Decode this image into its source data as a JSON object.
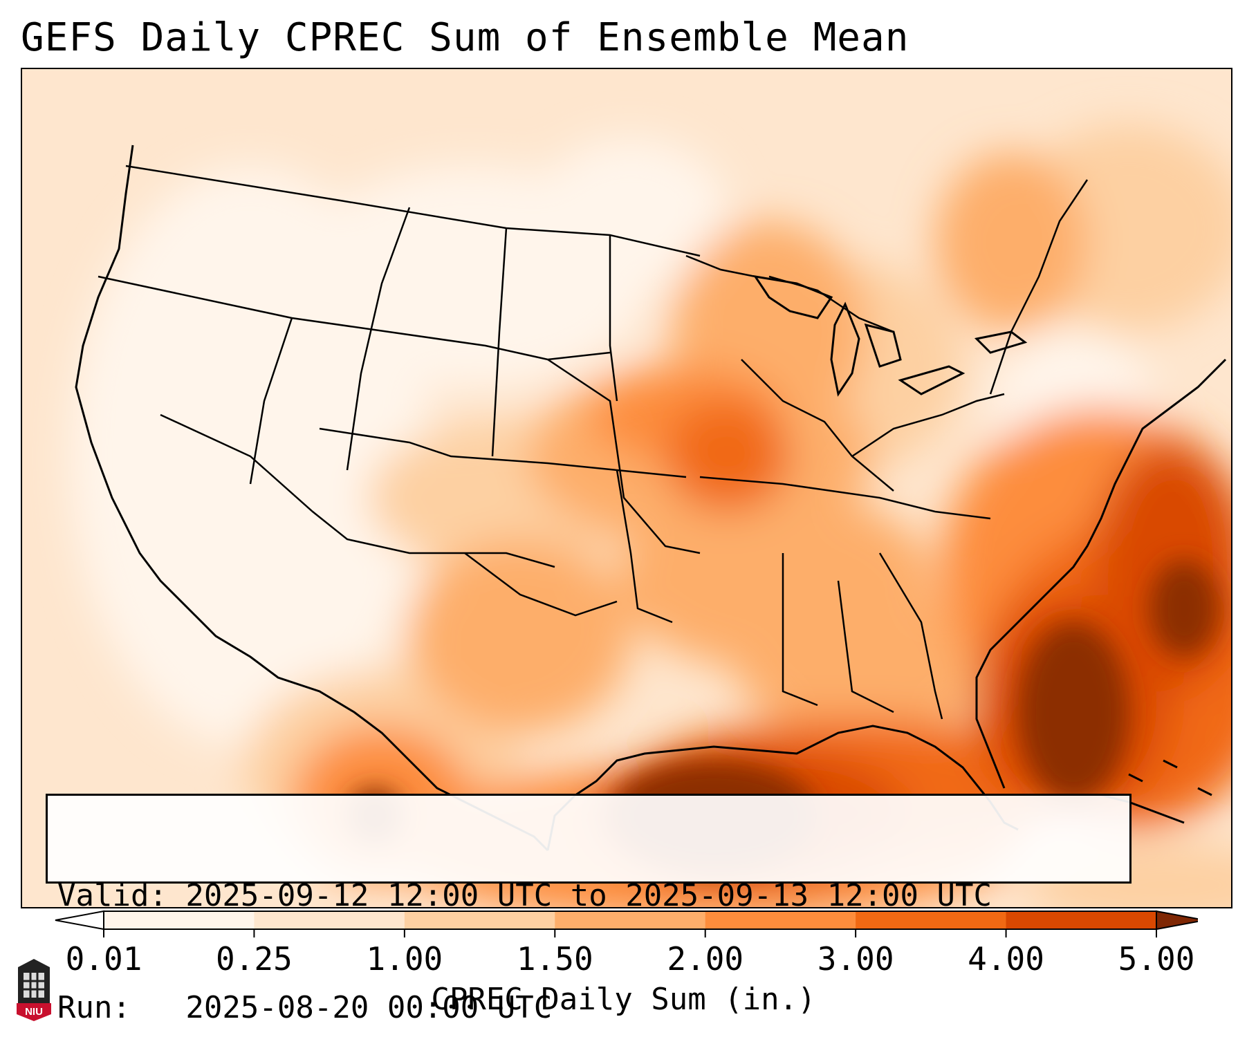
{
  "title": "GEFS Daily CPREC Sum of Ensemble Mean",
  "info": {
    "valid_line": "Valid: 2025-09-12 12:00 UTC to 2025-09-13 12:00 UTC",
    "run_line": "Run:   2025-08-20 00:00 UTC"
  },
  "colorbar": {
    "label": "CPREC Daily Sum (in.)",
    "ticks": [
      "0.01",
      "0.25",
      "1.00",
      "1.50",
      "2.00",
      "3.00",
      "4.00",
      "5.00"
    ],
    "colors": [
      "#fff5eb",
      "#fee6ce",
      "#fdd0a2",
      "#fdae6b",
      "#fd8d3c",
      "#f16913",
      "#d94801",
      "#8c2d04"
    ],
    "under_color": "#ffffff",
    "over_color": "#7f2704"
  },
  "logo": {
    "text": "NIU",
    "colors": {
      "shield": "#c8102e",
      "body": "#222222"
    }
  },
  "chart_data": {
    "type": "heatmap",
    "title": "GEFS Daily CPREC Sum of Ensemble Mean",
    "variable": "CPREC Daily Sum (in.)",
    "levels": [
      0.01,
      0.25,
      1.0,
      1.5,
      2.0,
      3.0,
      4.0,
      5.0
    ],
    "extend": "both",
    "region": "Contiguous United States",
    "valid_start": "2025-09-12 12:00 UTC",
    "valid_end": "2025-09-13 12:00 UTC",
    "run": "2025-08-20 00:00 UTC"
  }
}
